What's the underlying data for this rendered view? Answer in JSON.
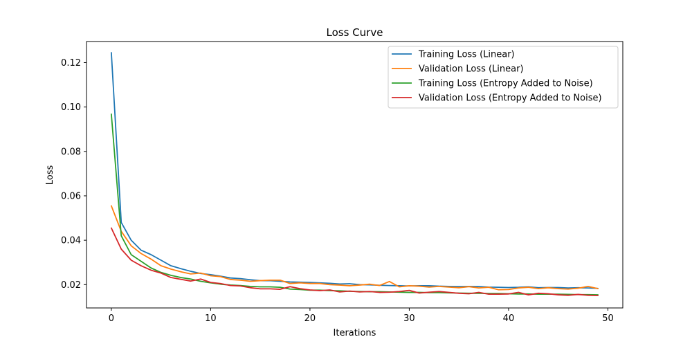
{
  "chart_data": {
    "type": "line",
    "title": "Loss Curve",
    "xlabel": "Iterations",
    "ylabel": "Loss",
    "xlim": [
      -2.5,
      51.5
    ],
    "ylim": [
      0.0095,
      0.1295
    ],
    "xticks": [
      0,
      10,
      20,
      30,
      40,
      50
    ],
    "yticks": [
      0.02,
      0.04,
      0.06,
      0.08,
      0.1,
      0.12
    ],
    "ytick_labels": [
      "0.02",
      "0.04",
      "0.06",
      "0.08",
      "0.10",
      "0.12"
    ],
    "grid": false,
    "legend_position": "top-right",
    "x": [
      0,
      1,
      2,
      3,
      4,
      5,
      6,
      7,
      8,
      9,
      10,
      11,
      12,
      13,
      14,
      15,
      16,
      17,
      18,
      19,
      20,
      21,
      22,
      23,
      24,
      25,
      26,
      27,
      28,
      29,
      30,
      31,
      32,
      33,
      34,
      35,
      36,
      37,
      38,
      39,
      40,
      41,
      42,
      43,
      44,
      45,
      46,
      47,
      48,
      49
    ],
    "series": [
      {
        "name": "Training Loss (Linear)",
        "color": "#1f77b4",
        "values": [
          0.1245,
          0.048,
          0.04,
          0.0355,
          0.0335,
          0.031,
          0.0285,
          0.0272,
          0.026,
          0.025,
          0.0245,
          0.0238,
          0.023,
          0.0227,
          0.0222,
          0.0218,
          0.0218,
          0.0215,
          0.0212,
          0.0211,
          0.021,
          0.0208,
          0.0206,
          0.0203,
          0.0204,
          0.02,
          0.0199,
          0.0197,
          0.0196,
          0.0195,
          0.0194,
          0.0195,
          0.0195,
          0.0193,
          0.0192,
          0.0191,
          0.0192,
          0.0191,
          0.0189,
          0.0188,
          0.0187,
          0.0188,
          0.019,
          0.0186,
          0.0187,
          0.0187,
          0.0185,
          0.0186,
          0.0185,
          0.0183
        ]
      },
      {
        "name": "Validation Loss (Linear)",
        "color": "#ff7f0e",
        "values": [
          0.0555,
          0.044,
          0.0375,
          0.034,
          0.0315,
          0.0285,
          0.027,
          0.0258,
          0.0248,
          0.0252,
          0.024,
          0.0236,
          0.0223,
          0.022,
          0.0215,
          0.0218,
          0.022,
          0.022,
          0.0205,
          0.0208,
          0.0205,
          0.0205,
          0.02,
          0.0198,
          0.0195,
          0.0198,
          0.0202,
          0.0196,
          0.0214,
          0.019,
          0.0195,
          0.0193,
          0.0189,
          0.0192,
          0.0189,
          0.0186,
          0.0191,
          0.0185,
          0.0188,
          0.0177,
          0.0178,
          0.0185,
          0.0188,
          0.0182,
          0.0186,
          0.0182,
          0.018,
          0.0184,
          0.0192,
          0.0182
        ]
      },
      {
        "name": "Training Loss (Entropy Added to Noise)",
        "color": "#2ca02c",
        "values": [
          0.0968,
          0.042,
          0.0335,
          0.0305,
          0.0275,
          0.0255,
          0.0242,
          0.0232,
          0.0225,
          0.0215,
          0.0208,
          0.0202,
          0.0198,
          0.0196,
          0.0192,
          0.019,
          0.019,
          0.0188,
          0.018,
          0.0178,
          0.0175,
          0.0175,
          0.0173,
          0.0172,
          0.017,
          0.0169,
          0.0168,
          0.0168,
          0.0167,
          0.0166,
          0.0165,
          0.0165,
          0.0164,
          0.0164,
          0.0163,
          0.0162,
          0.0161,
          0.0161,
          0.016,
          0.016,
          0.0159,
          0.0158,
          0.0158,
          0.0157,
          0.0157,
          0.0157,
          0.0156,
          0.0155,
          0.0155,
          0.0154
        ]
      },
      {
        "name": "Validation Loss (Entropy Added to Noise)",
        "color": "#d62728",
        "values": [
          0.0455,
          0.036,
          0.031,
          0.0285,
          0.0265,
          0.0252,
          0.0232,
          0.0224,
          0.0216,
          0.0225,
          0.021,
          0.0205,
          0.0196,
          0.0194,
          0.0186,
          0.0181,
          0.0181,
          0.0179,
          0.0191,
          0.0182,
          0.0176,
          0.0173,
          0.0176,
          0.0167,
          0.0171,
          0.0167,
          0.0169,
          0.0165,
          0.0166,
          0.0169,
          0.0174,
          0.0162,
          0.0166,
          0.0169,
          0.0165,
          0.0161,
          0.0159,
          0.0165,
          0.0157,
          0.0157,
          0.0158,
          0.0165,
          0.0154,
          0.0161,
          0.0159,
          0.0154,
          0.0152,
          0.0156,
          0.0152,
          0.0151
        ]
      }
    ]
  }
}
